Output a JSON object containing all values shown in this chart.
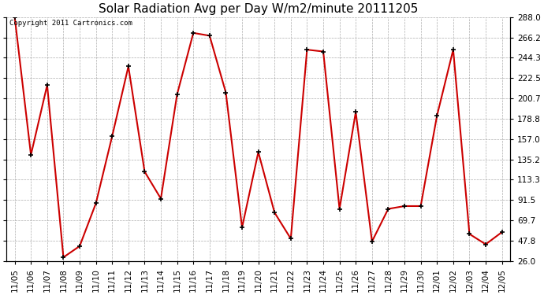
{
  "title": "Solar Radiation Avg per Day W/m2/minute 20111205",
  "copyright_text": "Copyright 2011 Cartronics.com",
  "labels": [
    "11/05",
    "11/06",
    "11/07",
    "11/08",
    "11/09",
    "11/10",
    "11/11",
    "11/12",
    "11/13",
    "11/14",
    "11/15",
    "11/16",
    "11/17",
    "11/18",
    "11/19",
    "11/20",
    "11/21",
    "11/22",
    "11/23",
    "11/24",
    "11/25",
    "11/26",
    "11/27",
    "11/28",
    "11/29",
    "11/30",
    "12/01",
    "12/02",
    "12/03",
    "12/04",
    "12/05"
  ],
  "values": [
    288.0,
    140.0,
    215.0,
    30.0,
    42.0,
    88.0,
    160.0,
    235.0,
    122.0,
    93.0,
    205.0,
    271.0,
    268.0,
    207.0,
    62.0,
    143.0,
    78.0,
    50.0,
    253.0,
    251.0,
    82.0,
    186.0,
    47.0,
    82.0,
    85.0,
    85.0,
    182.0,
    253.0,
    55.0,
    44.0,
    57.0
  ],
  "line_color": "#cc0000",
  "marker_color": "#000000",
  "bg_color": "#ffffff",
  "plot_bg_color": "#ffffff",
  "grid_color": "#999999",
  "ylim": [
    26.0,
    288.0
  ],
  "yticks": [
    26.0,
    47.8,
    69.7,
    91.5,
    113.3,
    135.2,
    157.0,
    178.8,
    200.7,
    222.5,
    244.3,
    266.2,
    288.0
  ],
  "title_fontsize": 11,
  "tick_fontsize": 7.5,
  "copyright_fontsize": 6.5
}
